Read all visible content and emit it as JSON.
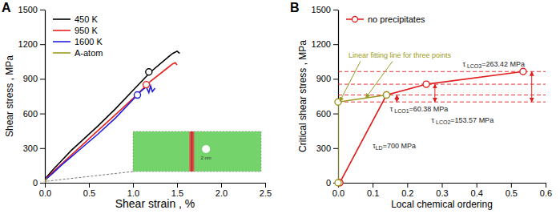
{
  "chart_data": [
    {
      "type": "line",
      "title": "A",
      "x_label": "Shear strain , %",
      "y_label": "Shear stress , MPa",
      "xlim": [
        0,
        2.5
      ],
      "ylim": [
        0,
        1500
      ],
      "xticks": [
        {
          "value": 0,
          "label": "0.0"
        },
        0.5,
        {
          "value": 1,
          "label": "1.0"
        },
        1.5,
        {
          "value": 2,
          "label": "2.0"
        },
        2.5
      ],
      "yticks": [
        0,
        300,
        600,
        900,
        1200,
        1500
      ],
      "legend": "upper left",
      "series": [
        {
          "name": "450 K",
          "color": "#000000",
          "line_style": "solid",
          "x": [
            0,
            0.02,
            0.1,
            0.2,
            0.3,
            0.4,
            0.6,
            0.8,
            1.0,
            1.2,
            1.4,
            1.45,
            1.5,
            1.53
          ],
          "values": [
            0,
            50,
            120,
            200,
            280,
            350,
            490,
            640,
            800,
            960,
            1090,
            1120,
            1140,
            1120
          ],
          "critical_x": 1.18,
          "critical_y": 960
        },
        {
          "name": "950 K",
          "color": "#e8231d",
          "line_style": "solid",
          "x": [
            0,
            0.02,
            0.1,
            0.2,
            0.3,
            0.4,
            0.6,
            0.8,
            1.0,
            1.2,
            1.4,
            1.45,
            1.48,
            1.5
          ],
          "values": [
            0,
            40,
            100,
            170,
            240,
            310,
            450,
            590,
            730,
            880,
            1000,
            1030,
            1040,
            1020
          ],
          "critical_x": 1.15,
          "critical_y": 850
        },
        {
          "name": "1600 K",
          "color": "#1f1fdc",
          "line_style": "solid",
          "x": [
            0,
            0.02,
            0.1,
            0.2,
            0.3,
            0.4,
            0.6,
            0.8,
            1.0,
            1.05,
            1.1,
            1.15,
            1.18,
            1.2,
            1.22,
            1.25
          ],
          "values": [
            0,
            35,
            90,
            160,
            225,
            290,
            420,
            560,
            720,
            760,
            800,
            830,
            780,
            840,
            790,
            820
          ],
          "critical_x": 1.05,
          "critical_y": 760
        },
        {
          "name": "A-atom",
          "color": "#9b9b23",
          "line_style": "solid",
          "x": [
            0,
            0.01,
            0.02
          ],
          "values": [
            0,
            20,
            40
          ]
        }
      ],
      "inset_label": "2 nm"
    },
    {
      "type": "line",
      "title": "B",
      "x_label": "Local chemical ordering",
      "y_label": "Critical shear stress , MPa",
      "xlim": [
        0,
        0.6
      ],
      "ylim": [
        0,
        1500
      ],
      "xticks": [
        {
          "value": 0,
          "label": "0.0"
        },
        0.1,
        0.2,
        0.3,
        0.4,
        0.5,
        0.6
      ],
      "yticks": [
        0,
        300,
        600,
        900,
        1200,
        1500
      ],
      "legend": "upper left",
      "series": [
        {
          "name": "no precipitates",
          "color": "#e02020",
          "marker": "circle",
          "line_style": "solid",
          "x": [
            0.005,
            0.14,
            0.255,
            0.535
          ],
          "values": [
            0,
            760.38,
            853.57,
            963.42
          ]
        },
        {
          "color": "#9b9b23",
          "marker": "circle",
          "line_style": "solid",
          "x": [
            0,
            0,
            0.14
          ],
          "values": [
            0,
            700,
            760.38
          ]
        }
      ],
      "reference_lines": {
        "color": "#e02020",
        "line_style": "dashed",
        "values": [
          700,
          760.38,
          853.57,
          963.42
        ]
      },
      "annotations": [
        {
          "parts": [
            "τ",
            "LD",
            "=700 MPa"
          ],
          "x": 0.1,
          "y": 300
        },
        {
          "parts": [
            "τ",
            " LCO1",
            "=60.38 MPa"
          ],
          "x": 0.15,
          "y": 620,
          "arrow_x": 0.17,
          "arrow_y": [
            700,
            760.38
          ]
        },
        {
          "parts": [
            "τ",
            " LCO2",
            "=153.57 MPa"
          ],
          "x": 0.27,
          "y": 520,
          "arrow_x": 0.28,
          "arrow_y": [
            700,
            853.57
          ]
        },
        {
          "parts": [
            "τ",
            " LCO3",
            "=263.42 MPa"
          ],
          "x": 0.36,
          "y": 1010,
          "arrow_x": 0.56,
          "arrow_y": [
            700,
            963.42
          ]
        },
        {
          "text": "Linear fitting line for three points",
          "color": "#9b9b23",
          "x": 0.03,
          "y": 1080,
          "arrows": [
            {
              "x": 0.005,
              "y": 705
            },
            {
              "x": 0.08,
              "y": 735
            }
          ]
        }
      ]
    }
  ]
}
